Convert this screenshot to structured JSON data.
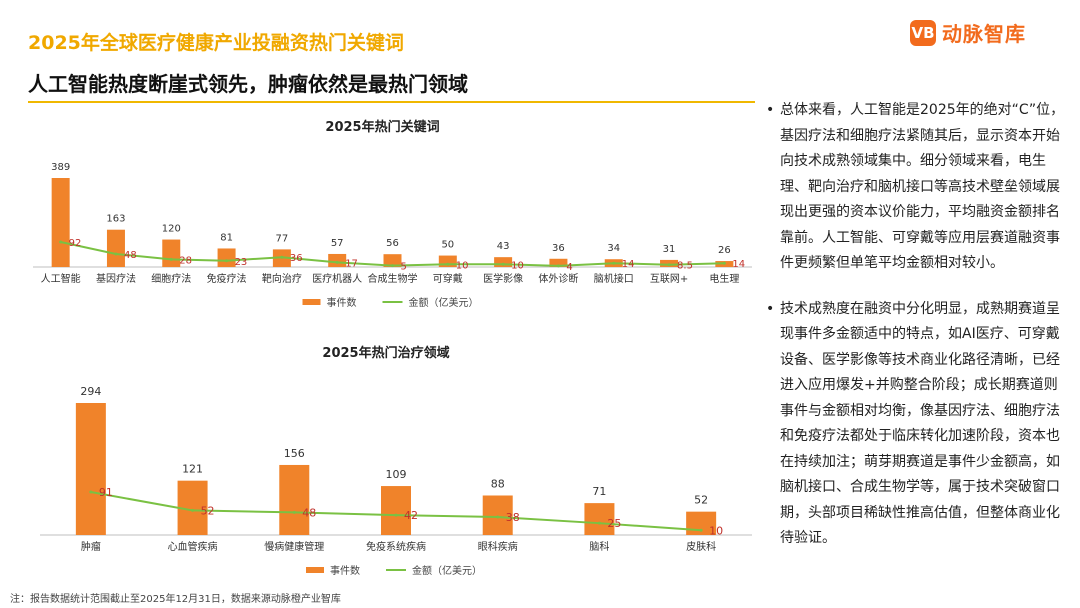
{
  "header": {
    "section_title": "2025年全球医疗健康产业投融资热门关键词",
    "headline": "人工智能热度断崖式领先，肿瘤依然是最热门领域"
  },
  "logo": {
    "mark": "VB",
    "text": "动脉智库",
    "color": "#f26b1d",
    "icon": "vb-logo-icon"
  },
  "chart_data": [
    {
      "type": "bar",
      "title": "2025年热门关键词",
      "categories": [
        "人工智能",
        "基因疗法",
        "细胞疗法",
        "免疫疗法",
        "靶向治疗",
        "医疗机器人",
        "合成生物学",
        "可穿戴",
        "医学影像",
        "体外诊断",
        "脑机接口",
        "互联网+",
        "电生理"
      ],
      "series": [
        {
          "name": "事件数",
          "type": "bar",
          "color": "#f0832a",
          "values": [
            389,
            163,
            120,
            81,
            77,
            57,
            56,
            50,
            43,
            36,
            34,
            31,
            26
          ]
        },
        {
          "name": "金额（亿美元）",
          "type": "line",
          "color": "#7ac143",
          "values": [
            92,
            48,
            28,
            23,
            36,
            17,
            5,
            10,
            10,
            4,
            14,
            8.5,
            14
          ]
        }
      ],
      "legend": "bottom",
      "grid": false
    },
    {
      "type": "bar",
      "title": "2025年热门治疗领域",
      "categories": [
        "肿瘤",
        "心血管疾病",
        "慢病健康管理",
        "免疫系统疾病",
        "眼科疾病",
        "脑科",
        "皮肤科"
      ],
      "series": [
        {
          "name": "事件数",
          "type": "bar",
          "color": "#f0832a",
          "values": [
            294,
            121,
            156,
            109,
            88,
            71,
            52
          ]
        },
        {
          "name": "金额（亿美元）",
          "type": "line",
          "color": "#7ac143",
          "values": [
            91,
            52,
            48,
            42,
            38,
            25,
            10
          ]
        }
      ],
      "legend": "bottom",
      "grid": false
    }
  ],
  "commentary": {
    "bullet_symbol": "•",
    "paragraphs": [
      "总体来看，人工智能是2025年的绝对“C”位，基因疗法和细胞疗法紧随其后，显示资本开始向技术成熟领域集中。细分领域来看，电生理、靶向治疗和脑机接口等高技术壁垒领域展现出更强的资本议价能力，平均融资金额排名靠前。人工智能、可穿戴等应用层赛道融资事件更频繁但单笔平均金额相对较小。",
      "技术成熟度在融资中分化明显，成熟期赛道呈现事件多金额适中的特点，如AI医疗、可穿戴设备、医学影像等技术商业化路径清晰，已经进入应用爆发+并购整合阶段；成长期赛道则事件与金额相对均衡，像基因疗法、细胞疗法和免疫疗法都处于临床转化加速阶段，资本也在持续加注；萌芽期赛道是事件少金额高，如脑机接口、合成生物学等，属于技术突破窗口期，头部项目稀缺性推高估值，但整体商业化待验证。"
    ]
  },
  "footnote": "注：报告数据统计范围截止至2025年12月31日，数据来源动脉橙产业智库"
}
